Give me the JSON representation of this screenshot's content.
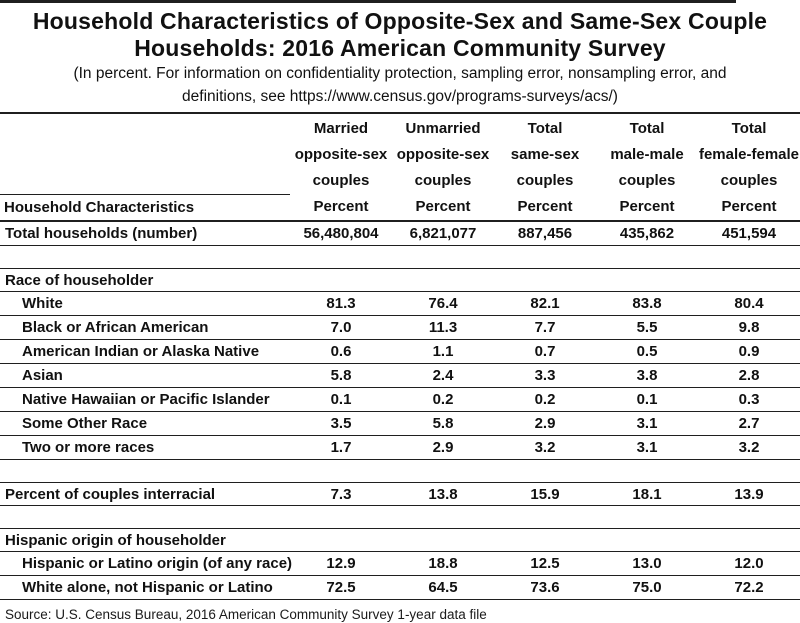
{
  "page": {
    "title_line1": "Household Characteristics of Opposite-Sex and Same-Sex Couple",
    "title_line2": "Households: 2016 American Community Survey",
    "subtitle_line1": "(In percent. For information on confidentiality protection, sampling error, nonsampling error, and",
    "subtitle_line2": "definitions, see https://www.census.gov/programs-surveys/acs/)",
    "source": "Source: U.S. Census Bureau, 2016 American Community Survey 1-year data file"
  },
  "table": {
    "stub_header": "Household Characteristics",
    "columns": [
      {
        "lines": [
          "Married",
          "opposite-sex",
          "couples",
          "Percent"
        ]
      },
      {
        "lines": [
          "Unmarried",
          "opposite-sex",
          "couples",
          "Percent"
        ]
      },
      {
        "lines": [
          "Total",
          "same-sex",
          "couples",
          "Percent"
        ]
      },
      {
        "lines": [
          "Total",
          "male-male",
          "couples",
          "Percent"
        ]
      },
      {
        "lines": [
          "Total",
          "female-female",
          "couples",
          "Percent"
        ]
      }
    ],
    "rows": [
      {
        "type": "data",
        "label": "Total households (number)",
        "indent": false,
        "values": [
          "56,480,804",
          "6,821,077",
          "887,456",
          "435,862",
          "451,594"
        ]
      },
      {
        "type": "spacer"
      },
      {
        "type": "section",
        "label": "Race of householder"
      },
      {
        "type": "data",
        "label": "White",
        "indent": true,
        "values": [
          "81.3",
          "76.4",
          "82.1",
          "83.8",
          "80.4"
        ]
      },
      {
        "type": "data",
        "label": "Black or African American",
        "indent": true,
        "values": [
          "7.0",
          "11.3",
          "7.7",
          "5.5",
          "9.8"
        ]
      },
      {
        "type": "data",
        "label": "American Indian or Alaska Native",
        "indent": true,
        "values": [
          "0.6",
          "1.1",
          "0.7",
          "0.5",
          "0.9"
        ]
      },
      {
        "type": "data",
        "label": "Asian",
        "indent": true,
        "values": [
          "5.8",
          "2.4",
          "3.3",
          "3.8",
          "2.8"
        ]
      },
      {
        "type": "data",
        "label": "Native Hawaiian or Pacific Islander",
        "indent": true,
        "values": [
          "0.1",
          "0.2",
          "0.2",
          "0.1",
          "0.3"
        ]
      },
      {
        "type": "data",
        "label": "Some Other Race",
        "indent": true,
        "values": [
          "3.5",
          "5.8",
          "2.9",
          "3.1",
          "2.7"
        ]
      },
      {
        "type": "data",
        "label": "Two or more races",
        "indent": true,
        "values": [
          "1.7",
          "2.9",
          "3.2",
          "3.1",
          "3.2"
        ]
      },
      {
        "type": "spacer"
      },
      {
        "type": "data",
        "label": "Percent of couples interracial",
        "indent": false,
        "values": [
          "7.3",
          "13.8",
          "15.9",
          "18.1",
          "13.9"
        ]
      },
      {
        "type": "spacer"
      },
      {
        "type": "section",
        "label": "Hispanic origin of householder"
      },
      {
        "type": "data",
        "label": "Hispanic or Latino origin (of any race)",
        "indent": true,
        "values": [
          "12.9",
          "18.8",
          "12.5",
          "13.0",
          "12.0"
        ]
      },
      {
        "type": "data",
        "label": "White alone, not Hispanic or Latino",
        "indent": true,
        "values": [
          "72.5",
          "64.5",
          "73.6",
          "75.0",
          "72.2"
        ]
      }
    ]
  }
}
